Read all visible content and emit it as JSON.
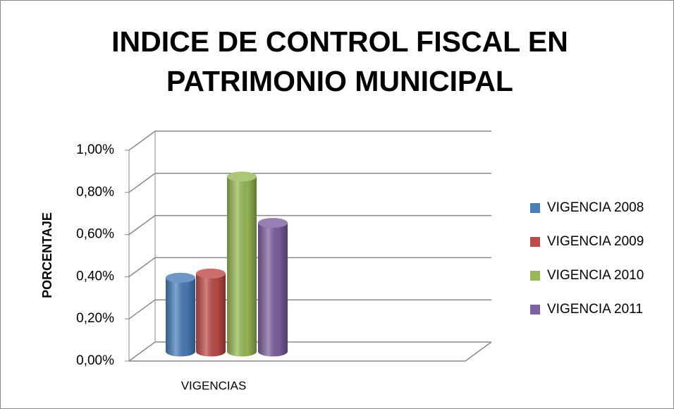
{
  "chart_data": {
    "type": "bar3d",
    "title": [
      "INDICE DE CONTROL FISCAL EN",
      "PATRIMONIO MUNICIPAL"
    ],
    "y_label": "PORCENTAJE",
    "categories": [
      "VIGENCIAS"
    ],
    "series": [
      {
        "name": "VIGENCIA 2008",
        "color": "#4a7ebb",
        "values": [
          0.35
        ]
      },
      {
        "name": "VIGENCIA 2009",
        "color": "#be4b48",
        "values": [
          0.37
        ]
      },
      {
        "name": "VIGENCIA 2010",
        "color": "#98b954",
        "values": [
          0.83
        ]
      },
      {
        "name": "VIGENCIA 2011",
        "color": "#7d60a0",
        "values": [
          0.61
        ]
      }
    ],
    "ylim": [
      0,
      1
    ],
    "yticks": [
      {
        "value": 0,
        "label": "0,00%"
      },
      {
        "value": 0.2,
        "label": "0,20%"
      },
      {
        "value": 0.4,
        "label": "0,40%"
      },
      {
        "value": 0.6,
        "label": "0,60%"
      },
      {
        "value": 0.8,
        "label": "0,80%"
      },
      {
        "value": 1,
        "label": "1,00%"
      }
    ],
    "grid": true,
    "legend": "right"
  }
}
